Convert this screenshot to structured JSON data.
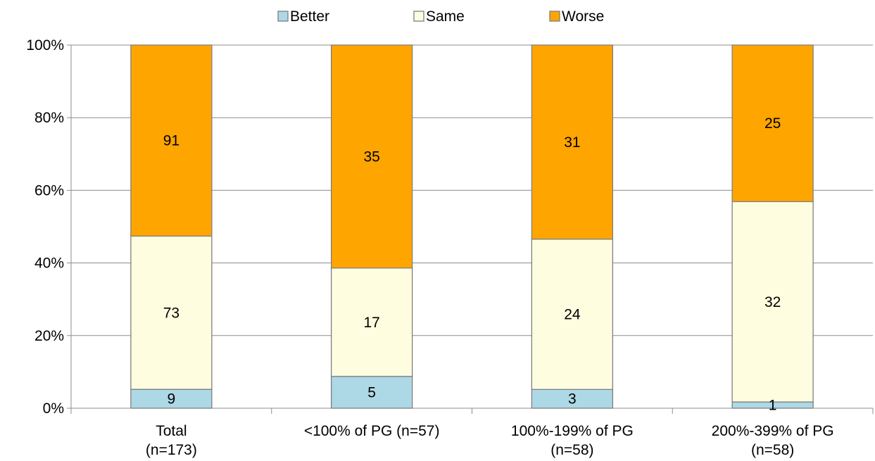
{
  "chart_data": {
    "type": "bar",
    "stacked": "percent",
    "categories": [
      [
        "Total",
        "(n=173)"
      ],
      [
        "<100% of PG (n=57)"
      ],
      [
        "100%-199% of PG",
        "(n=58)"
      ],
      [
        "200%-399% of PG",
        "(n=58)"
      ]
    ],
    "series": [
      {
        "name": "Better",
        "color": "#ADD8E6",
        "values": [
          9,
          5,
          3,
          1
        ]
      },
      {
        "name": "Same",
        "color": "#FFFDE0",
        "values": [
          73,
          17,
          24,
          32
        ]
      },
      {
        "name": "Worse",
        "color": "#FFA500",
        "values": [
          91,
          35,
          31,
          25
        ]
      }
    ],
    "yaxis": {
      "ticks": [
        "0%",
        "20%",
        "40%",
        "60%",
        "80%",
        "100%"
      ],
      "ylim": [
        0,
        100
      ]
    },
    "grid": true,
    "legend": "top-center"
  }
}
